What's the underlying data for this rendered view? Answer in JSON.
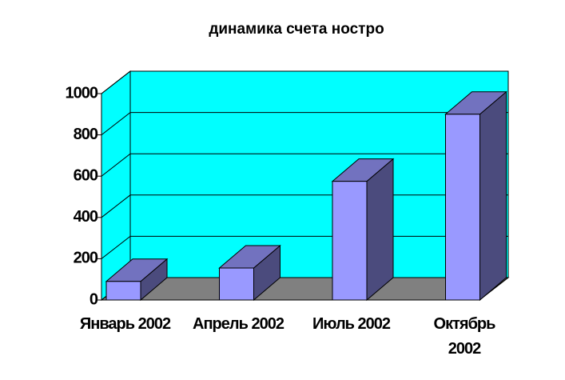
{
  "chart_data": {
    "type": "bar3d",
    "title": "динамика счета ностро",
    "categories": [
      "Январь 2002",
      "Апрель 2002",
      "Июль 2002",
      "Октябрь 2002"
    ],
    "values": [
      90,
      155,
      575,
      900
    ],
    "color": "#9999ff",
    "ylim": [
      0,
      1000
    ],
    "yticks": [
      0,
      200,
      400,
      600,
      800,
      1000
    ],
    "grid": true
  }
}
